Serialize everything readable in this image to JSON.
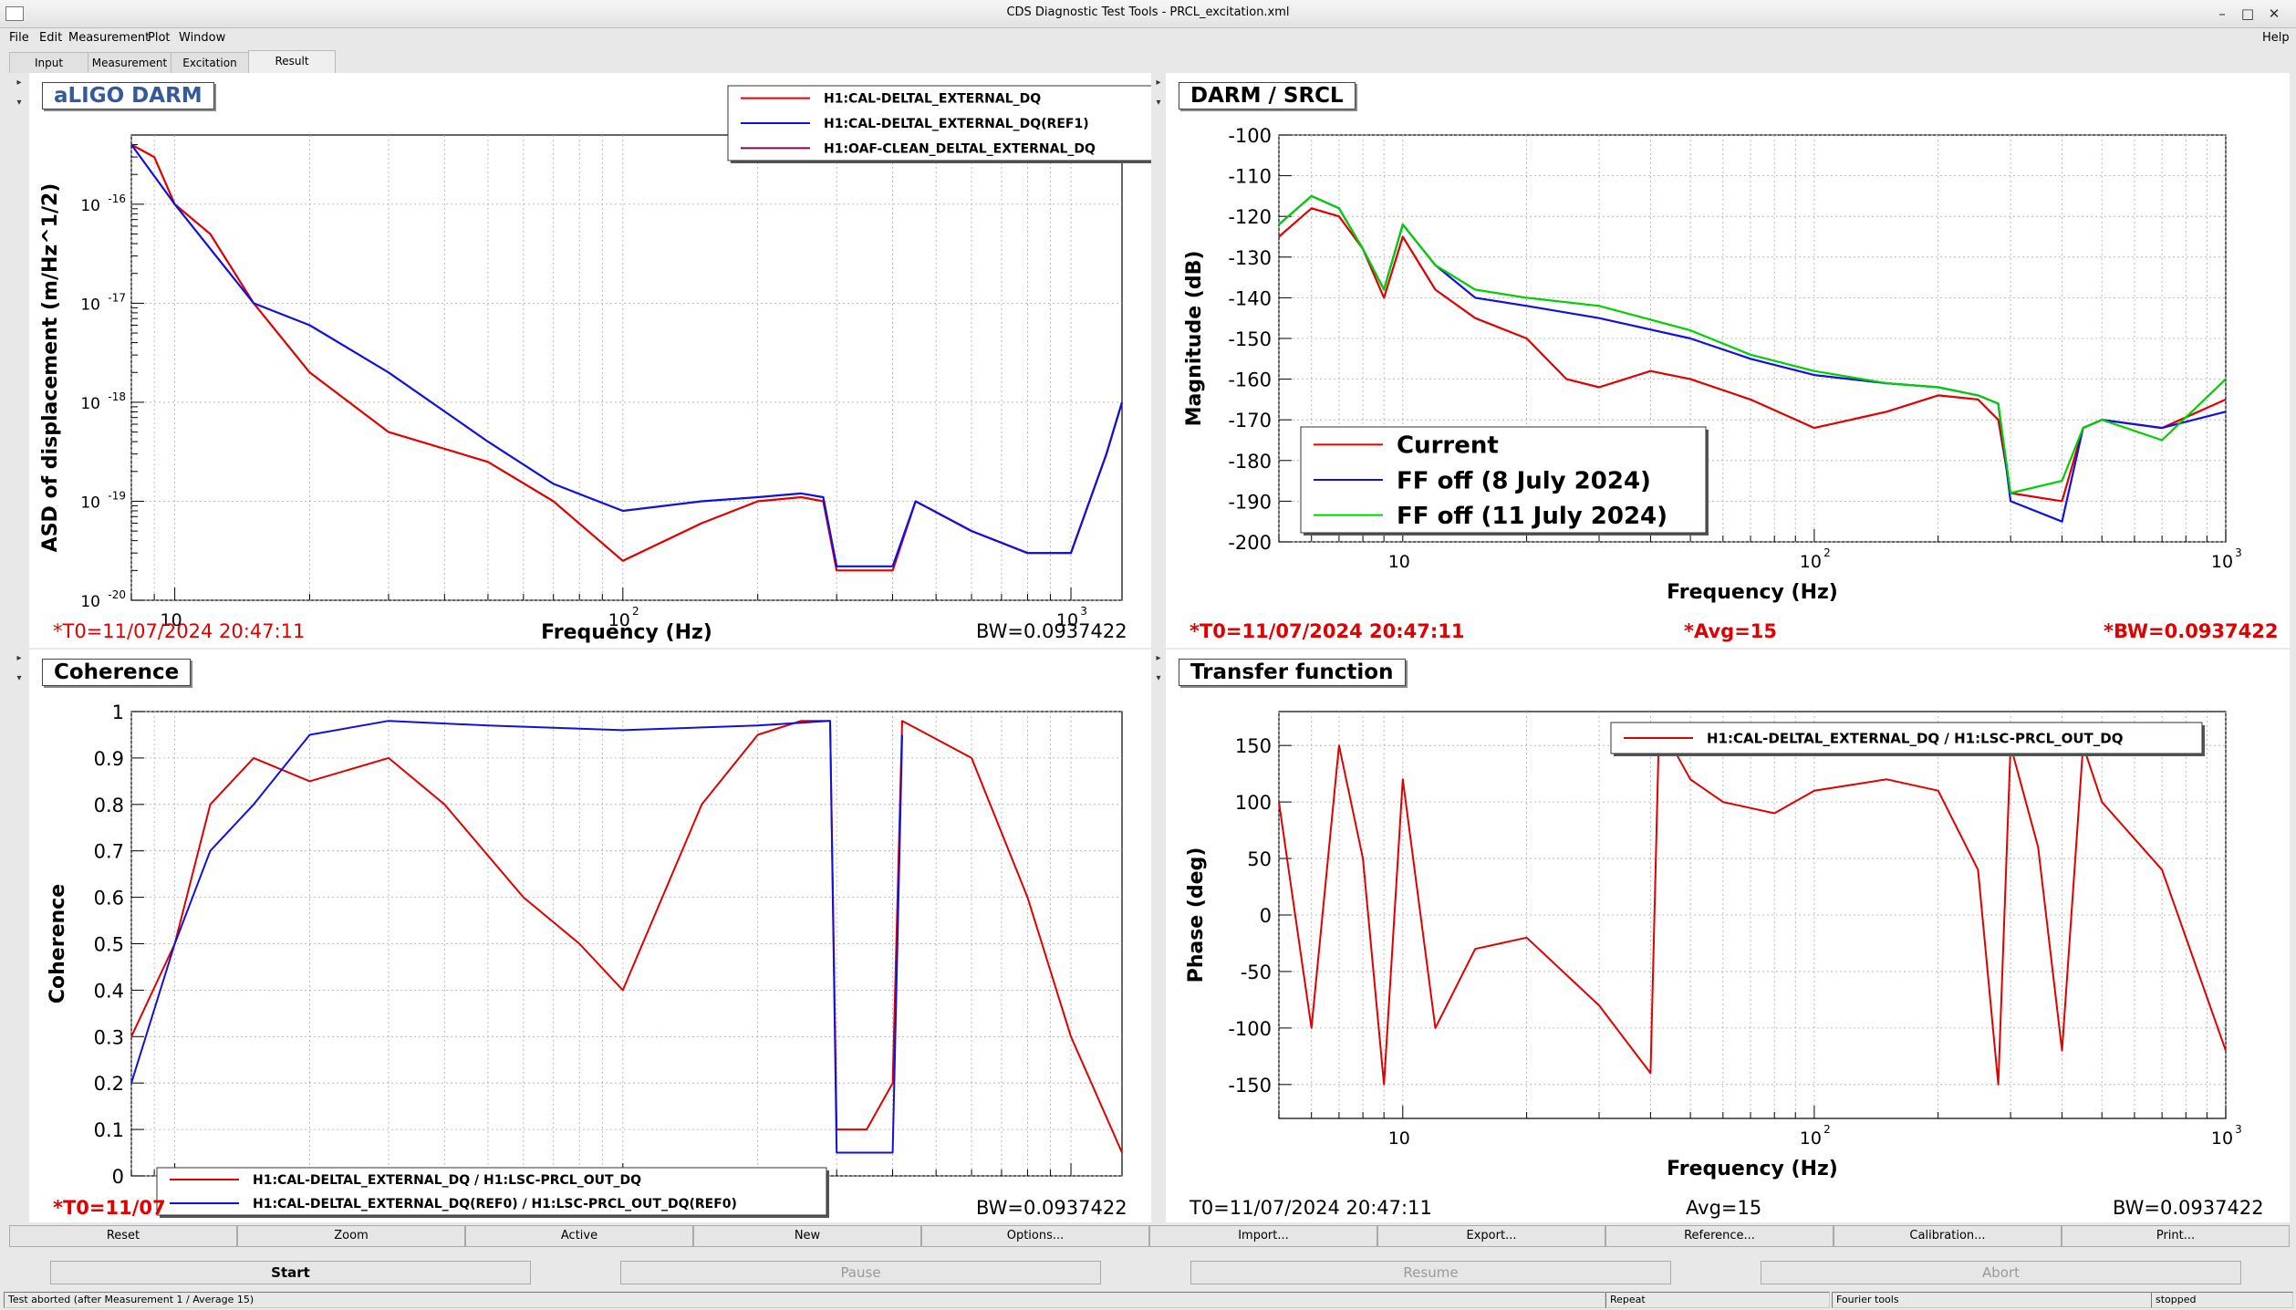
{
  "window": {
    "title": "CDS Diagnostic Test Tools - PRCL_excitation.xml"
  },
  "menu": {
    "file": "File",
    "edit": "Edit",
    "measurement": "Measurement",
    "plot": "Plot",
    "window": "Window",
    "help": "Help"
  },
  "tabs": [
    "Input",
    "Measurement",
    "Excitation",
    "Result"
  ],
  "panels": {
    "darm": {
      "title": "aLIGO DARM",
      "xlabel": "Frequency (Hz)",
      "ylabel": "ASD of displacement (m/Hz^1/2)",
      "t0": "*T0=11/07/2024 20:47:11",
      "bw": "BW=0.0937422",
      "legend": [
        "H1:CAL-DELTAL_EXTERNAL_DQ",
        "H1:CAL-DELTAL_EXTERNAL_DQ(REF1)",
        "H1:OAF-CLEAN_DELTAL_EXTERNAL_DQ"
      ]
    },
    "srcl": {
      "title": "DARM / SRCL",
      "xlabel": "Frequency (Hz)",
      "ylabel": "Magnitude (dB)",
      "t0": "*T0=11/07/2024 20:47:11",
      "avg": "*Avg=15",
      "bw": "*BW=0.0937422",
      "legend": [
        "Current",
        "FF off (8 July 2024)",
        "FF off  (11 July 2024)"
      ]
    },
    "coh": {
      "title": "Coherence",
      "ylabel": "Coherence",
      "t0": "*T0=11/07",
      "bw": "BW=0.0937422",
      "legend": [
        "H1:CAL-DELTAL_EXTERNAL_DQ / H1:LSC-PRCL_OUT_DQ",
        "H1:CAL-DELTAL_EXTERNAL_DQ(REF0) / H1:LSC-PRCL_OUT_DQ(REF0)"
      ]
    },
    "tf": {
      "title": "Transfer function",
      "xlabel": "Frequency (Hz)",
      "ylabel": "Phase (deg)",
      "t0": "T0=11/07/2024 20:47:11",
      "avg": "Avg=15",
      "bw": "BW=0.0937422",
      "legend": [
        "H1:CAL-DELTAL_EXTERNAL_DQ / H1:LSC-PRCL_OUT_DQ"
      ]
    }
  },
  "colors": {
    "red": "#e00000",
    "blue": "#1010e0",
    "green": "#00d000",
    "purple": "#7a0a5a"
  },
  "chart_data": [
    {
      "type": "line",
      "title": "aLIGO DARM",
      "xlabel": "Frequency (Hz)",
      "ylabel": "ASD of displacement (m/Hz^1/2)",
      "xscale": "log",
      "yscale": "log",
      "xlim": [
        8,
        1300
      ],
      "ylim": [
        1e-20,
        5e-16
      ],
      "xticks": [
        "10",
        "10^2",
        "10^3"
      ],
      "yticks": [
        "10^-20",
        "10^-19",
        "10^-18",
        "10^-17",
        "10^-16"
      ],
      "grid": true,
      "legend_position": "top-right",
      "series": [
        {
          "name": "H1:CAL-DELTAL_EXTERNAL_DQ",
          "color": "#e00000",
          "x": [
            8,
            9,
            10,
            12,
            15,
            20,
            30,
            50,
            70,
            100,
            150,
            200,
            250,
            280,
            300,
            400,
            450,
            600,
            800,
            1000,
            1200,
            1300
          ],
          "y": [
            4e-16,
            3e-16,
            1e-16,
            5e-17,
            1e-17,
            2e-18,
            5e-19,
            2.5e-19,
            1e-19,
            2.5e-20,
            6e-20,
            1e-19,
            1.1e-19,
            1e-19,
            2e-20,
            2e-20,
            1e-19,
            5e-20,
            3e-20,
            3e-20,
            3e-19,
            1e-18
          ]
        },
        {
          "name": "H1:CAL-DELTAL_EXTERNAL_DQ(REF1)",
          "color": "#1010e0",
          "x": [
            8,
            10,
            15,
            20,
            30,
            50,
            70,
            100,
            150,
            200,
            250,
            280,
            300,
            400,
            450,
            600,
            800,
            1000,
            1200,
            1300
          ],
          "y": [
            4e-16,
            1e-16,
            1e-17,
            6e-18,
            2e-18,
            4e-19,
            1.5e-19,
            8e-20,
            1e-19,
            1.1e-19,
            1.2e-19,
            1.1e-19,
            2.2e-20,
            2.2e-20,
            1e-19,
            5e-20,
            3e-20,
            3e-20,
            3e-19,
            1e-18
          ]
        },
        {
          "name": "H1:OAF-CLEAN_DELTAL_EXTERNAL_DQ",
          "color": "#7a0a5a",
          "x": [],
          "y": []
        }
      ]
    },
    {
      "type": "line",
      "title": "DARM / SRCL",
      "xlabel": "Frequency (Hz)",
      "ylabel": "Magnitude (dB)",
      "xscale": "log",
      "xlim": [
        5,
        1000
      ],
      "ylim": [
        -200,
        -100
      ],
      "yticks": [
        -200,
        -190,
        -180,
        -170,
        -160,
        -150,
        -140,
        -130,
        -120,
        -110,
        -100
      ],
      "xticks": [
        "10",
        "10^2",
        "10^3"
      ],
      "grid": true,
      "legend_position": "bottom-left",
      "series": [
        {
          "name": "Current",
          "color": "#e00000",
          "x": [
            5,
            6,
            7,
            8,
            9,
            10,
            12,
            15,
            20,
            25,
            30,
            40,
            50,
            70,
            100,
            150,
            200,
            250,
            280,
            300,
            400,
            450,
            500,
            700,
            1000
          ],
          "y": [
            -125,
            -118,
            -120,
            -128,
            -140,
            -125,
            -138,
            -145,
            -150,
            -160,
            -162,
            -158,
            -160,
            -165,
            -172,
            -168,
            -164,
            -165,
            -170,
            -188,
            -190,
            -172,
            -170,
            -172,
            -165
          ]
        },
        {
          "name": "FF off (8 July 2024)",
          "color": "#1010e0",
          "x": [
            5,
            6,
            7,
            8,
            9,
            10,
            12,
            15,
            20,
            30,
            50,
            70,
            100,
            150,
            200,
            250,
            280,
            300,
            400,
            450,
            500,
            700,
            1000
          ],
          "y": [
            -122,
            -115,
            -118,
            -128,
            -138,
            -122,
            -132,
            -140,
            -142,
            -145,
            -150,
            -155,
            -159,
            -161,
            -162,
            -164,
            -166,
            -190,
            -195,
            -172,
            -170,
            -172,
            -168
          ]
        },
        {
          "name": "FF off  (11 July 2024)",
          "color": "#00d000",
          "x": [
            5,
            6,
            7,
            8,
            9,
            10,
            12,
            15,
            20,
            30,
            50,
            70,
            100,
            150,
            200,
            250,
            280,
            300,
            400,
            450,
            500,
            700,
            1000
          ],
          "y": [
            -122,
            -115,
            -118,
            -128,
            -138,
            -122,
            -132,
            -138,
            -140,
            -142,
            -148,
            -154,
            -158,
            -161,
            -162,
            -164,
            -166,
            -188,
            -185,
            -172,
            -170,
            -175,
            -160
          ]
        }
      ]
    },
    {
      "type": "line",
      "title": "Coherence",
      "ylabel": "Coherence",
      "xscale": "log",
      "xlim": [
        8,
        1300
      ],
      "ylim": [
        0,
        1
      ],
      "yticks": [
        0,
        0.1,
        0.2,
        0.3,
        0.4,
        0.5,
        0.6,
        0.7,
        0.8,
        0.9,
        1
      ],
      "grid": true,
      "legend_position": "bottom-left",
      "series": [
        {
          "name": "H1:CAL-DELTAL_EXTERNAL_DQ / H1:LSC-PRCL_OUT_DQ",
          "color": "#e00000",
          "x": [
            8,
            10,
            12,
            15,
            20,
            30,
            40,
            60,
            80,
            100,
            150,
            200,
            250,
            290,
            300,
            350,
            400,
            420,
            600,
            800,
            1000,
            1300
          ],
          "y": [
            0.3,
            0.5,
            0.8,
            0.9,
            0.85,
            0.9,
            0.8,
            0.6,
            0.5,
            0.4,
            0.8,
            0.95,
            0.98,
            0.98,
            0.1,
            0.1,
            0.2,
            0.98,
            0.9,
            0.6,
            0.3,
            0.05
          ]
        },
        {
          "name": "H1:CAL-DELTAL_EXTERNAL_DQ(REF0) / H1:LSC-PRCL_OUT_DQ(REF0)",
          "color": "#1010e0",
          "x": [
            8,
            10,
            12,
            15,
            20,
            30,
            50,
            100,
            200,
            290,
            300,
            400,
            420
          ],
          "y": [
            0.2,
            0.5,
            0.7,
            0.8,
            0.95,
            0.98,
            0.97,
            0.96,
            0.97,
            0.98,
            0.05,
            0.05,
            0.95
          ]
        }
      ]
    },
    {
      "type": "line",
      "title": "Transfer function",
      "xlabel": "Frequency (Hz)",
      "ylabel": "Phase (deg)",
      "xscale": "log",
      "xlim": [
        5,
        1000
      ],
      "ylim": [
        -180,
        180
      ],
      "yticks": [
        -150,
        -100,
        -50,
        0,
        50,
        100,
        150
      ],
      "xticks": [
        "10",
        "10^2",
        "10^3"
      ],
      "grid": true,
      "legend_position": "top-right",
      "series": [
        {
          "name": "H1:CAL-DELTAL_EXTERNAL_DQ / H1:LSC-PRCL_OUT_DQ",
          "color": "#e00000",
          "x": [
            5,
            6,
            7,
            8,
            9,
            10,
            12,
            15,
            20,
            30,
            40,
            42,
            45,
            50,
            60,
            80,
            100,
            150,
            200,
            250,
            280,
            300,
            350,
            400,
            450,
            500,
            700,
            1000
          ],
          "y": [
            100,
            -100,
            150,
            50,
            -150,
            120,
            -100,
            -30,
            -20,
            -80,
            -140,
            170,
            150,
            120,
            100,
            90,
            110,
            120,
            110,
            40,
            -150,
            150,
            60,
            -120,
            150,
            100,
            40,
            -120
          ]
        }
      ]
    }
  ],
  "buttons": [
    "Reset",
    "Zoom",
    "Active",
    "New",
    "Options...",
    "Import...",
    "Export...",
    "Reference...",
    "Calibration...",
    "Print..."
  ],
  "controls": [
    "Start",
    "Pause",
    "Resume",
    "Abort"
  ],
  "status": {
    "message": "Test aborted (after Measurement 1 / Average 15)",
    "repeat": "Repeat",
    "fourier": "Fourier tools",
    "state": "stopped"
  }
}
